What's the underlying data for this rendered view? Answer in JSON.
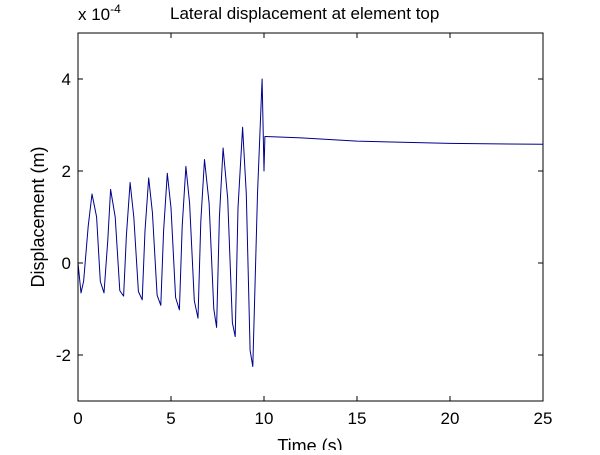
{
  "chart_data": {
    "type": "line",
    "title": "Lateral displacement at element top",
    "xlabel": "Time (s)",
    "ylabel": "Displacement (m)",
    "y_scale_prefix": "x 10",
    "y_scale_exponent": "-4",
    "xlim": [
      0,
      25
    ],
    "ylim": [
      -3,
      5
    ],
    "grid": false,
    "legend": "none",
    "x_ticks": [
      0,
      5,
      10,
      15,
      20,
      25
    ],
    "x_tick_labels": [
      "0",
      "5",
      "10",
      "15",
      "20",
      "25"
    ],
    "y_ticks": [
      -2,
      0,
      2,
      4
    ],
    "y_tick_labels": [
      "-2",
      "0",
      "2",
      "4"
    ],
    "line_color": "#00008b",
    "series": [
      {
        "x": [
          0.0,
          0.16,
          0.3,
          0.55,
          0.75,
          1.0,
          1.2,
          1.4,
          1.6,
          1.75,
          2.0,
          2.25,
          2.45,
          2.6,
          2.8,
          3.0,
          3.25,
          3.45,
          3.6,
          3.8,
          4.0,
          4.25,
          4.45,
          4.6,
          4.8,
          5.0,
          5.25,
          5.45,
          5.6,
          5.8,
          6.0,
          6.25,
          6.45,
          6.6,
          6.8,
          7.05,
          7.3,
          7.45,
          7.6,
          7.8,
          8.05,
          8.3,
          8.45,
          8.6,
          8.85,
          9.05,
          9.25,
          9.4,
          9.65,
          9.9,
          10.0,
          10.05,
          10.1,
          12.0,
          15.0,
          20.0,
          25.0
        ],
        "y": [
          0.0,
          -0.65,
          -0.4,
          0.8,
          1.5,
          1.0,
          -0.4,
          -0.65,
          0.5,
          1.6,
          1.0,
          -0.6,
          -0.72,
          0.6,
          1.75,
          1.0,
          -0.62,
          -0.8,
          0.7,
          1.85,
          1.1,
          -0.7,
          -0.92,
          0.7,
          1.95,
          1.2,
          -0.75,
          -1.02,
          0.8,
          2.1,
          1.3,
          -0.82,
          -1.2,
          0.9,
          2.25,
          1.3,
          -1.0,
          -1.4,
          1.0,
          2.5,
          1.4,
          -1.3,
          -1.6,
          1.2,
          2.95,
          1.5,
          -1.9,
          -2.25,
          1.5,
          4.0,
          2.0,
          2.75,
          2.75,
          2.72,
          2.65,
          2.6,
          2.58
        ]
      }
    ]
  }
}
